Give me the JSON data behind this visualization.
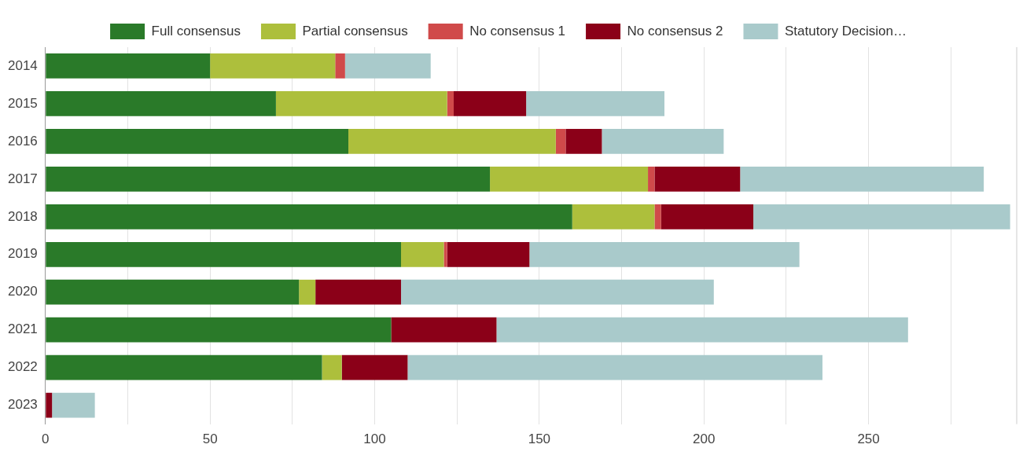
{
  "chart_data": {
    "type": "bar",
    "orientation": "horizontal",
    "stacked": true,
    "categories": [
      "2014",
      "2015",
      "2016",
      "2017",
      "2018",
      "2019",
      "2020",
      "2021",
      "2022",
      "2023"
    ],
    "series": [
      {
        "name": "Full consensus",
        "color": "#2a7a29",
        "values": [
          50,
          70,
          92,
          135,
          160,
          108,
          77,
          105,
          84,
          0
        ]
      },
      {
        "name": "Partial consensus",
        "color": "#adbf3c",
        "values": [
          38,
          52,
          63,
          48,
          25,
          13,
          5,
          0,
          6,
          0
        ]
      },
      {
        "name": "No consensus 1",
        "color": "#d04a4a",
        "values": [
          3,
          2,
          3,
          2,
          2,
          1,
          0,
          0,
          0,
          0
        ]
      },
      {
        "name": "No consensus 2",
        "color": "#8b0018",
        "values": [
          0,
          22,
          11,
          26,
          28,
          25,
          26,
          32,
          20,
          2
        ]
      },
      {
        "name": "Statutory Decision…",
        "color": "#a9cacb",
        "values": [
          26,
          42,
          37,
          74,
          78,
          82,
          95,
          125,
          126,
          13
        ]
      }
    ],
    "xlim": [
      0,
      295
    ],
    "xticks": [
      0,
      {
        "value": 25,
        "label": null
      },
      50,
      {
        "value": 75,
        "label": null
      },
      100,
      {
        "value": 125,
        "label": null
      },
      150,
      {
        "value": 175,
        "label": null
      },
      200,
      {
        "value": 225,
        "label": null
      },
      250,
      {
        "value": 275,
        "label": null
      }
    ],
    "grid": "x",
    "legend": "top"
  }
}
